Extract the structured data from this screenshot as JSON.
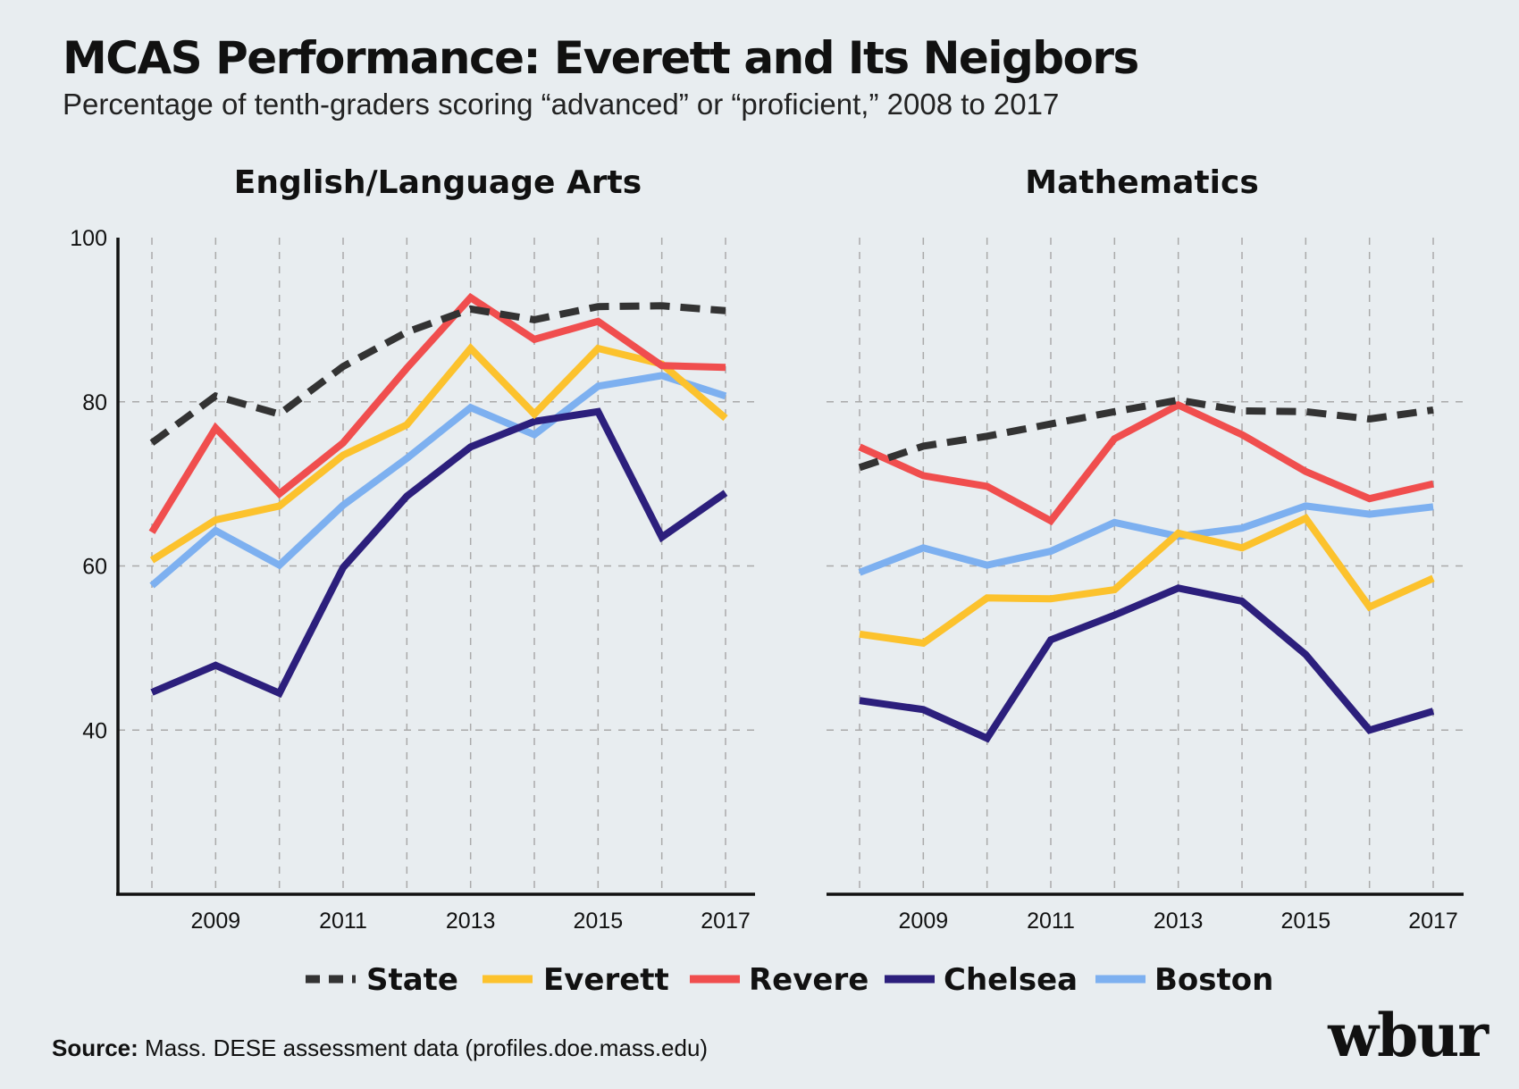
{
  "header": {
    "title": "MCAS Performance: Everett and Its Neigbors",
    "subtitle": "Percentage of tenth-graders scoring “advanced” or “proficient,” 2008 to 2017"
  },
  "footer": {
    "source_label": "Source:",
    "source_text": " Mass. DESE assessment data (profiles.doe.mass.edu)",
    "logo": "wbur"
  },
  "colors": {
    "State": "#333333",
    "Everett": "#fcc22d",
    "Revere": "#f04e4e",
    "Chelsea": "#2c1f7c",
    "Boston": "#7db0f0",
    "background": "#e8edf0",
    "grid": "#aaaaaa"
  },
  "legend": [
    {
      "name": "State",
      "style": "dashed"
    },
    {
      "name": "Everett",
      "style": "solid"
    },
    {
      "name": "Revere",
      "style": "solid"
    },
    {
      "name": "Chelsea",
      "style": "solid"
    },
    {
      "name": "Boston",
      "style": "solid"
    }
  ],
  "chart_data": [
    {
      "type": "line",
      "title": "English/Language Arts",
      "x": [
        2008,
        2009,
        2010,
        2011,
        2012,
        2013,
        2014,
        2015,
        2016,
        2017
      ],
      "x_tick_labels": [
        "2009",
        "2011",
        "2013",
        "2015",
        "2017"
      ],
      "y_ticks": [
        40,
        60,
        80,
        100
      ],
      "y_tick_labels": [
        "40",
        "60",
        "80",
        "100"
      ],
      "ylim": [
        20,
        100
      ],
      "xlim": [
        2007.5,
        2017.5
      ],
      "grid": "dashed",
      "legend_position": "bottom",
      "series": [
        {
          "name": "State",
          "values": [
            75,
            80.7,
            78.5,
            84.3,
            88.5,
            91.3,
            90,
            91.6,
            91.7,
            91.1
          ]
        },
        {
          "name": "Everett",
          "values": [
            60.7,
            65.6,
            67.3,
            73.5,
            77.2,
            86.5,
            78.5,
            86.5,
            84.6,
            78
          ]
        },
        {
          "name": "Revere",
          "values": [
            64.1,
            76.8,
            68.8,
            75,
            84.1,
            92.7,
            87.6,
            89.8,
            84.4,
            84.2
          ]
        },
        {
          "name": "Chelsea",
          "values": [
            44.6,
            47.9,
            44.5,
            59.8,
            68.5,
            74.5,
            77.6,
            78.8,
            63.5,
            68.9
          ]
        },
        {
          "name": "Boston",
          "values": [
            57.6,
            64.3,
            60.1,
            67.4,
            73.1,
            79.3,
            76,
            81.9,
            83.2,
            80.7
          ]
        }
      ]
    },
    {
      "type": "line",
      "title": "Mathematics",
      "x": [
        2008,
        2009,
        2010,
        2011,
        2012,
        2013,
        2014,
        2015,
        2016,
        2017
      ],
      "x_tick_labels": [
        "2009",
        "2011",
        "2013",
        "2015",
        "2017"
      ],
      "y_ticks": [
        40,
        60,
        80
      ],
      "ylim": [
        20,
        100
      ],
      "xlim": [
        2007.5,
        2017.5
      ],
      "grid": "dashed",
      "legend_position": "bottom",
      "series": [
        {
          "name": "State",
          "values": [
            72,
            74.6,
            75.8,
            77.3,
            78.8,
            80.2,
            78.9,
            78.8,
            77.9,
            79
          ]
        },
        {
          "name": "Everett",
          "values": [
            51.7,
            50.6,
            56.1,
            56,
            57.1,
            64,
            62.2,
            65.8,
            55,
            58.5
          ]
        },
        {
          "name": "Revere",
          "values": [
            74.5,
            71,
            69.7,
            65.5,
            75.5,
            79.6,
            76,
            71.5,
            68.2,
            70
          ]
        },
        {
          "name": "Chelsea",
          "values": [
            43.6,
            42.5,
            39,
            51,
            54,
            57.3,
            55.7,
            49.2,
            40,
            42.3
          ]
        },
        {
          "name": "Boston",
          "values": [
            59.2,
            62.2,
            60.1,
            61.8,
            65.3,
            63.6,
            64.6,
            67.3,
            66.3,
            67.2
          ]
        }
      ]
    }
  ]
}
